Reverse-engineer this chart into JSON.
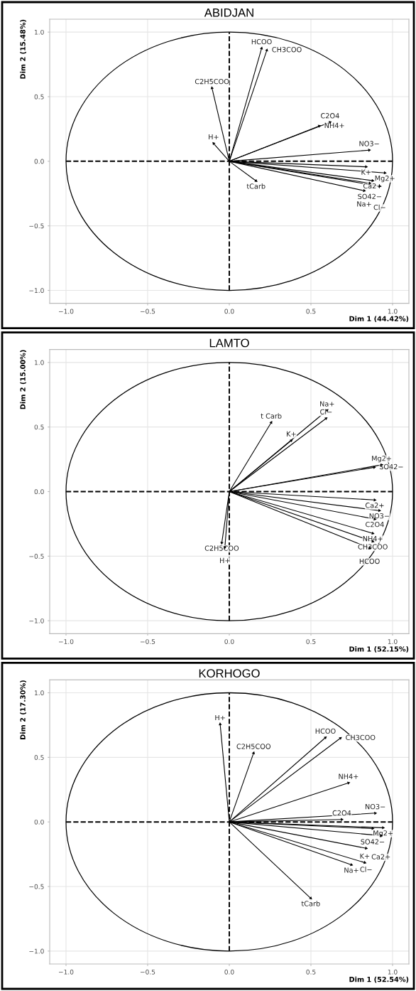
{
  "chart_data": [
    {
      "type": "scatter",
      "title": "ABIDJAN",
      "xlabel": "Dim 1 (44.42%)",
      "ylabel": "Dim 2 (15.48%)",
      "xlim": [
        -1.1,
        1.1
      ],
      "ylim": [
        -1.1,
        1.1
      ],
      "xticks": [
        {
          "value": -1,
          "label": "−1.0"
        },
        {
          "value": -0.5,
          "label": "−0.5"
        },
        {
          "value": 0,
          "label": "0.0"
        },
        {
          "value": 0.5,
          "label": "0.5"
        },
        {
          "value": 1,
          "label": "1.0"
        }
      ],
      "yticks": [
        {
          "value": -1,
          "label": "−1.0"
        },
        {
          "value": -0.5,
          "label": "−0.5"
        },
        {
          "value": 0,
          "label": "0.0"
        },
        {
          "value": 0.5,
          "label": "0.5"
        },
        {
          "value": 1,
          "label": "1.0"
        }
      ],
      "grid": true,
      "series": [
        {
          "type": "line",
          "color": "#000000",
          "line_style": "dashed",
          "x": [
            0,
            0
          ],
          "values": [
            -1,
            1
          ]
        },
        {
          "type": "line",
          "color": "#000000",
          "line_style": "dashed",
          "x": [
            -1,
            1
          ],
          "values": [
            0,
            0
          ]
        },
        {
          "color": "#000000",
          "marker": "triangle",
          "x": [
            0.198,
            0.23,
            -0.106,
            -0.096,
            0.617,
            0.551,
            0.857,
            0.838,
            0.953,
            0.878,
            0.86,
            0.921,
            0.826,
            0.164
          ],
          "values": [
            0.875,
            0.86,
            0.567,
            0.138,
            0.302,
            0.273,
            0.086,
            -0.043,
            -0.09,
            -0.15,
            -0.17,
            -0.193,
            -0.228,
            -0.152
          ]
        }
      ],
      "annotations": [
        {
          "text": "HCOO",
          "x": 0.198,
          "y": 0.875
        },
        {
          "text": "CH3COO",
          "x": 0.23,
          "y": 0.86
        },
        {
          "text": "C2H5COO",
          "x": -0.106,
          "y": 0.567
        },
        {
          "text": "H+",
          "x": -0.096,
          "y": 0.138
        },
        {
          "text": "C2O4",
          "x": 0.617,
          "y": 0.302
        },
        {
          "text": "NH4+",
          "x": 0.551,
          "y": 0.273
        },
        {
          "text": "NO3−",
          "x": 0.857,
          "y": 0.086
        },
        {
          "text": "K+",
          "x": 0.838,
          "y": -0.043
        },
        {
          "text": "Mg2+",
          "x": 0.953,
          "y": -0.09
        },
        {
          "text": "Ca2+",
          "x": 0.878,
          "y": -0.15
        },
        {
          "text": "SO42−",
          "x": 0.86,
          "y": -0.17
        },
        {
          "text": "Cl−",
          "x": 0.921,
          "y": -0.193
        },
        {
          "text": "Na+",
          "x": 0.826,
          "y": -0.228
        },
        {
          "text": "tCarb",
          "x": 0.164,
          "y": -0.152
        }
      ]
    },
    {
      "type": "scatter",
      "title": "LAMTO",
      "xlabel": "Dim 1 (52.15%)",
      "ylabel": "Dim 2 (15.00%)",
      "xlim": [
        -1.1,
        1.1
      ],
      "ylim": [
        -1.1,
        1.1
      ],
      "xticks": [
        {
          "value": -1,
          "label": "−1.0"
        },
        {
          "value": -0.5,
          "label": "−0.5"
        },
        {
          "value": 0,
          "label": "0.0"
        },
        {
          "value": 0.5,
          "label": "0.5"
        },
        {
          "value": 1,
          "label": "1.0"
        }
      ],
      "yticks": [
        {
          "value": -1,
          "label": "−1.0"
        },
        {
          "value": -0.5,
          "label": "−0.5"
        },
        {
          "value": 0,
          "label": "0.0"
        },
        {
          "value": 0.5,
          "label": "0.5"
        },
        {
          "value": 1,
          "label": "1.0"
        }
      ],
      "grid": true,
      "series": [
        {
          "type": "line",
          "color": "#000000",
          "line_style": "dashed",
          "x": [
            0,
            0
          ],
          "values": [
            -1,
            1
          ]
        },
        {
          "type": "line",
          "color": "#000000",
          "line_style": "dashed",
          "x": [
            -1,
            1
          ],
          "values": [
            0,
            0
          ]
        },
        {
          "color": "#000000",
          "marker": "triangle",
          "x": [
            0.599,
            0.593,
            0.257,
            0.38,
            0.933,
            0.888,
            0.891,
            0.919,
            0.891,
            0.879,
            0.879,
            0.859,
            -0.046,
            -0.027
          ],
          "values": [
            0.629,
            0.567,
            0.535,
            0.396,
            0.207,
            0.188,
            -0.065,
            -0.147,
            -0.213,
            -0.323,
            -0.386,
            -0.437,
            -0.397,
            -0.431
          ]
        }
      ],
      "annotations": [
        {
          "text": "Na+",
          "x": 0.599,
          "y": 0.629
        },
        {
          "text": "Cl−",
          "x": 0.593,
          "y": 0.567
        },
        {
          "text": "t Carb",
          "x": 0.257,
          "y": 0.535
        },
        {
          "text": "K+",
          "x": 0.38,
          "y": 0.396
        },
        {
          "text": "Mg2+",
          "x": 0.933,
          "y": 0.207
        },
        {
          "text": "SO42−",
          "x": 0.888,
          "y": 0.188
        },
        {
          "text": "Ca2+",
          "x": 0.891,
          "y": -0.065
        },
        {
          "text": "NO3−",
          "x": 0.919,
          "y": -0.147
        },
        {
          "text": "C2O4",
          "x": 0.891,
          "y": -0.213
        },
        {
          "text": "NH4+",
          "x": 0.879,
          "y": -0.323
        },
        {
          "text": "CH3COO",
          "x": 0.879,
          "y": -0.386
        },
        {
          "text": "HCOO",
          "x": 0.859,
          "y": -0.437
        },
        {
          "text": "C2H5COO",
          "x": -0.046,
          "y": -0.397
        },
        {
          "text": "H+",
          "x": -0.027,
          "y": -0.431
        }
      ]
    },
    {
      "type": "scatter",
      "title": "KORHOGO",
      "xlabel": "Dim 1 (52.54%)",
      "ylabel": "Dim 2 (17.30%)",
      "xlim": [
        -1.1,
        1.1
      ],
      "ylim": [
        -1.1,
        1.1
      ],
      "xticks": [
        {
          "value": -1,
          "label": "−1.0"
        },
        {
          "value": -0.5,
          "label": "−0.5"
        },
        {
          "value": 0,
          "label": "0.0"
        },
        {
          "value": 0.5,
          "label": "0.5"
        },
        {
          "value": 1,
          "label": "1.0"
        }
      ],
      "yticks": [
        {
          "value": -1,
          "label": "−1.0"
        },
        {
          "value": -0.5,
          "label": "−0.5"
        },
        {
          "value": 0,
          "label": "0.0"
        },
        {
          "value": 0.5,
          "label": "0.5"
        },
        {
          "value": 1,
          "label": "1.0"
        }
      ],
      "grid": true,
      "series": [
        {
          "type": "line",
          "color": "#000000",
          "line_style": "dashed",
          "x": [
            0,
            0
          ],
          "values": [
            -1,
            1
          ]
        },
        {
          "type": "line",
          "color": "#000000",
          "line_style": "dashed",
          "x": [
            -1,
            1
          ],
          "values": [
            0,
            0
          ]
        },
        {
          "color": "#000000",
          "marker": "triangle",
          "x": [
            -0.056,
            0.149,
            0.589,
            0.681,
            0.73,
            0.894,
            0.689,
            0.942,
            0.878,
            0.929,
            0.838,
            0.83,
            0.748,
            0.499
          ],
          "values": [
            0.757,
            0.534,
            0.653,
            0.649,
            0.302,
            0.068,
            0.019,
            -0.045,
            -0.051,
            -0.106,
            -0.204,
            -0.315,
            -0.332,
            -0.591
          ]
        }
      ],
      "annotations": [
        {
          "text": "H+",
          "x": -0.056,
          "y": 0.757
        },
        {
          "text": "C2H5COO",
          "x": 0.149,
          "y": 0.534
        },
        {
          "text": "HCOO",
          "x": 0.589,
          "y": 0.653
        },
        {
          "text": "CH3COO",
          "x": 0.681,
          "y": 0.649
        },
        {
          "text": "NH4+",
          "x": 0.73,
          "y": 0.302
        },
        {
          "text": "NO3−",
          "x": 0.894,
          "y": 0.068
        },
        {
          "text": "C2O4",
          "x": 0.689,
          "y": 0.019
        },
        {
          "text": "Mg2+",
          "x": 0.942,
          "y": -0.045
        },
        {
          "text": "SO42−",
          "x": 0.878,
          "y": -0.051
        },
        {
          "text": "Ca2+",
          "x": 0.929,
          "y": -0.106
        },
        {
          "text": "Cl−",
          "x": 0.838,
          "y": -0.204
        },
        {
          "text": "K+",
          "x": 0.83,
          "y": -0.315
        },
        {
          "text": "Na+",
          "x": 0.748,
          "y": -0.332
        },
        {
          "text": "tCarb",
          "x": 0.499,
          "y": -0.591
        }
      ]
    }
  ]
}
